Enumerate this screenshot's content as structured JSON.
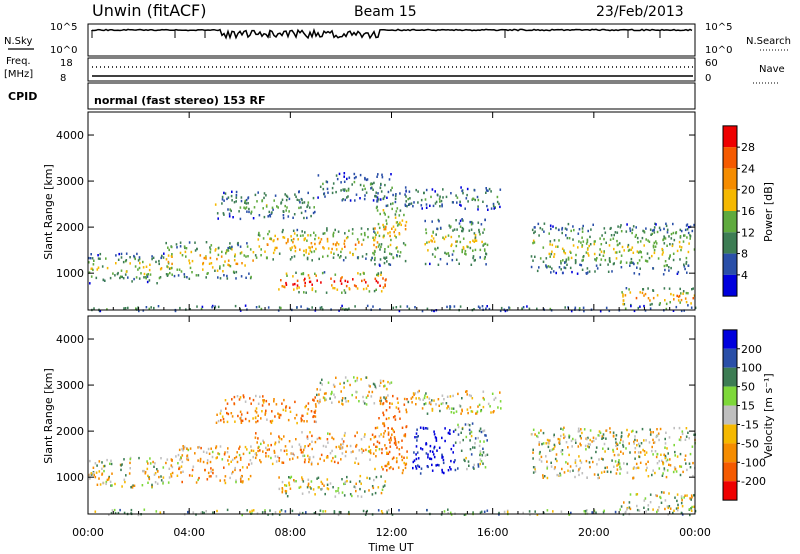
{
  "header": {
    "station": "Unwin (fitACF)",
    "beam": "Beam 15",
    "date": "23/Feb/2013"
  },
  "side_labels": {
    "nsky": "N.Sky",
    "nsearch": "N.Search",
    "freq": "Freq.",
    "freq_unit": "[MHz]",
    "nave": "Nave",
    "cpid": "CPID",
    "mode": "normal (fast stereo) 153 RF"
  },
  "noise_axis": {
    "left_top": "10^5",
    "left_bottom": "10^0",
    "right_top": "10^5",
    "right_bottom": "10^0"
  },
  "freq_axis": {
    "left_top": "18",
    "left_bottom": "8",
    "right_top": "60",
    "right_bottom": "0"
  },
  "colors": {
    "power": [
      "#0000dd",
      "#2a4fa8",
      "#3d7d54",
      "#5faa3e",
      "#f5b800",
      "#f58c00",
      "#f55a00",
      "#ee0000"
    ],
    "velocity": [
      "#0000dd",
      "#2a4fa8",
      "#3d7d54",
      "#7ed83a",
      "#bfbfbf",
      "#f5b800",
      "#f58c00",
      "#f55a00",
      "#ee0000"
    ],
    "ground": "#bfbfbf"
  },
  "chart_data": [
    {
      "type": "heatmap",
      "panel": "power",
      "ylabel": "Slant Range [km]",
      "xlim": [
        0,
        24
      ],
      "ylim": [
        200,
        4500
      ],
      "yticks": [
        "1000",
        "2000",
        "3000",
        "4000"
      ],
      "colorbar": {
        "label": "Power [dB]",
        "ticks": [
          "4",
          "8",
          "12",
          "16",
          "20",
          "24",
          "28"
        ],
        "range": [
          0,
          30
        ]
      },
      "regions": [
        {
          "t0": 0,
          "t1": 3,
          "r0": 800,
          "r1": 1450,
          "level": 0.45
        },
        {
          "t0": 3,
          "t1": 6.5,
          "r0": 900,
          "r1": 1700,
          "level": 0.55
        },
        {
          "t0": 6.5,
          "t1": 11.5,
          "r0": 1300,
          "r1": 2000,
          "level": 0.6
        },
        {
          "t0": 7.5,
          "t1": 11.8,
          "r0": 600,
          "r1": 1050,
          "level": 0.85
        },
        {
          "t0": 5,
          "t1": 9,
          "r0": 2200,
          "r1": 2800,
          "level": 0.35
        },
        {
          "t0": 9,
          "t1": 12,
          "r0": 2600,
          "r1": 3200,
          "level": 0.3
        },
        {
          "t0": 11.3,
          "t1": 12.6,
          "r0": 1100,
          "r1": 2800,
          "level": 0.5
        },
        {
          "t0": 13.3,
          "t1": 15.8,
          "r0": 1200,
          "r1": 2200,
          "level": 0.45
        },
        {
          "t0": 12.5,
          "t1": 16.3,
          "r0": 2400,
          "r1": 2900,
          "level": 0.3
        },
        {
          "t0": 17.5,
          "t1": 24,
          "r0": 1000,
          "r1": 2100,
          "level": 0.45
        },
        {
          "t0": 21,
          "t1": 24,
          "r0": 300,
          "r1": 700,
          "level": 0.65
        },
        {
          "t0": 0,
          "t1": 24,
          "r0": 200,
          "r1": 320,
          "level": 0.3
        }
      ]
    },
    {
      "type": "heatmap",
      "panel": "velocity",
      "ylabel": "Slant Range [km]",
      "xlabel": "Time UT",
      "xlim": [
        0,
        24
      ],
      "ylim": [
        200,
        4500
      ],
      "yticks": [
        "1000",
        "2000",
        "3000",
        "4000"
      ],
      "xticks": [
        "00:00",
        "04:00",
        "08:00",
        "12:00",
        "16:00",
        "20:00",
        "00:00"
      ],
      "colorbar": {
        "label": "Velocity [m s⁻¹]",
        "ticks": [
          "200",
          "100",
          "50",
          "15",
          "-15",
          "-50",
          "-100",
          "-200"
        ],
        "range": [
          -250,
          250
        ]
      },
      "regions": [
        {
          "t0": 0,
          "t1": 3,
          "r0": 800,
          "r1": 1450,
          "vel": 0
        },
        {
          "t0": 3,
          "t1": 6.5,
          "r0": 900,
          "r1": 1700,
          "vel": -30
        },
        {
          "t0": 6.5,
          "t1": 11.5,
          "r0": 1300,
          "r1": 2000,
          "vel": -40
        },
        {
          "t0": 7.5,
          "t1": 11.8,
          "r0": 600,
          "r1": 1050,
          "vel": 0
        },
        {
          "t0": 5,
          "t1": 9,
          "r0": 2200,
          "r1": 2800,
          "vel": -60
        },
        {
          "t0": 9,
          "t1": 12,
          "r0": 2600,
          "r1": 3200,
          "vel": 0
        },
        {
          "t0": 11.3,
          "t1": 12.6,
          "r0": 1100,
          "r1": 2800,
          "vel": -80
        },
        {
          "t0": 12.8,
          "t1": 14.5,
          "r0": 1100,
          "r1": 2100,
          "vel": 180
        },
        {
          "t0": 14.5,
          "t1": 15.8,
          "r0": 1200,
          "r1": 2200,
          "vel": 40
        },
        {
          "t0": 12.5,
          "t1": 16.3,
          "r0": 2400,
          "r1": 2900,
          "vel": 0
        },
        {
          "t0": 17.5,
          "t1": 24,
          "r0": 1000,
          "r1": 2100,
          "vel": 0
        },
        {
          "t0": 21,
          "t1": 24,
          "r0": 300,
          "r1": 700,
          "vel": 0
        },
        {
          "t0": 0,
          "t1": 24,
          "r0": 200,
          "r1": 320,
          "vel": 30
        }
      ]
    }
  ]
}
